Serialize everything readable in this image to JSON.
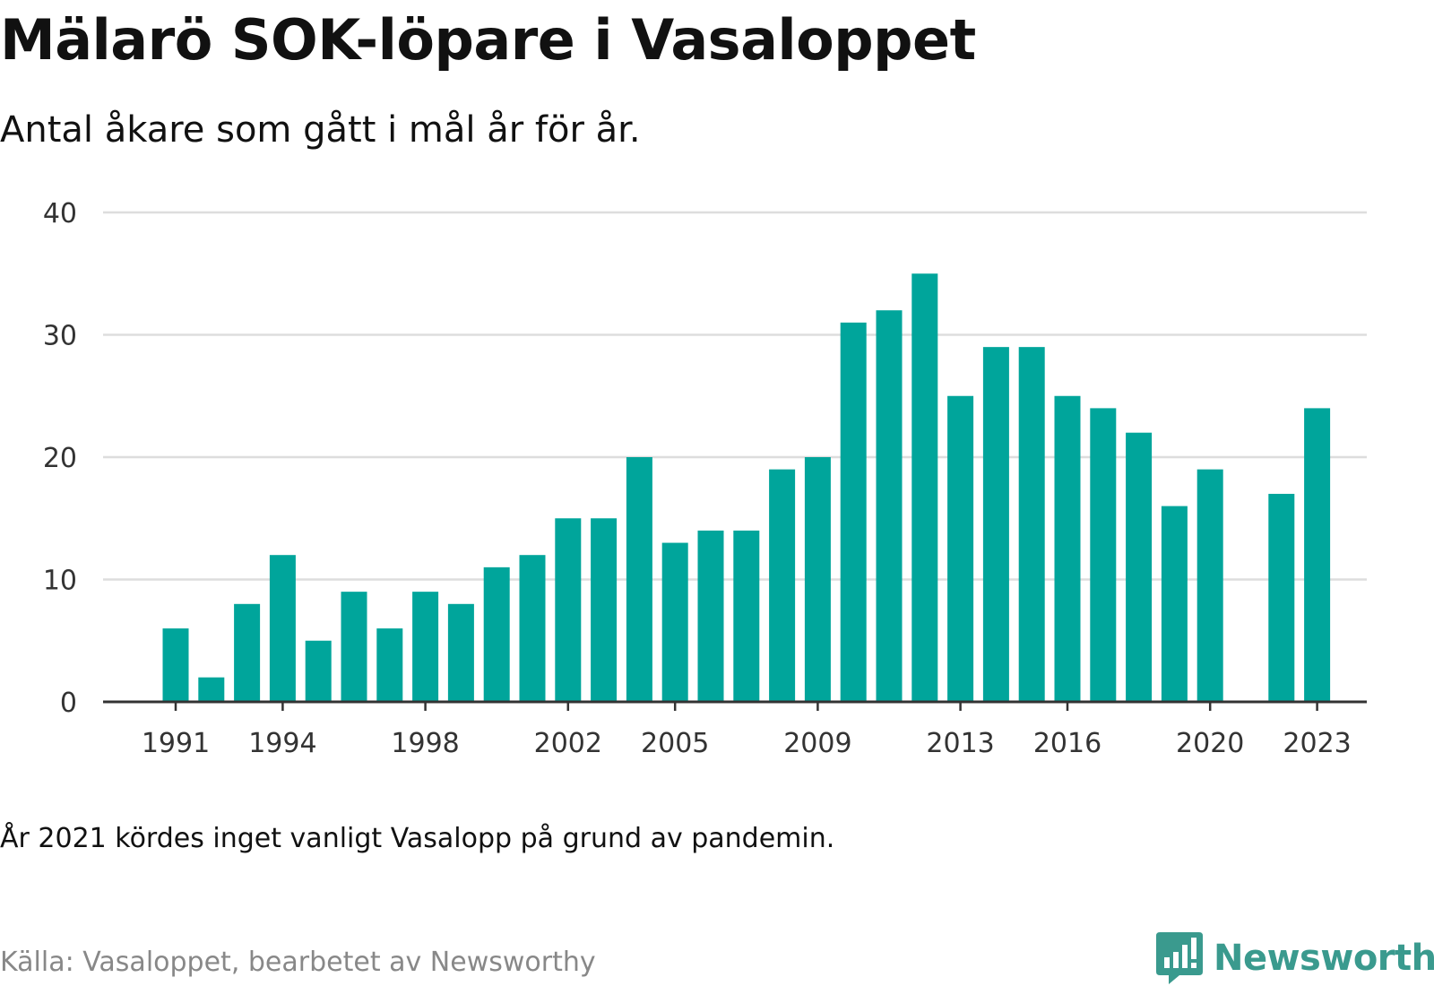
{
  "title": "Mälarö SOK-löpare i Vasaloppet",
  "subtitle": "Antal åkare som gått i mål år för år.",
  "note": "År 2021 kördes inget vanligt Vasalopp på grund av pandemin.",
  "source": "Källa: Vasaloppet, bearbetet av Newsworthy",
  "brand": {
    "name": "Newsworthy",
    "icon": "newsworthy-logo-icon",
    "color": "#3a9a8e"
  },
  "chart_data": {
    "type": "bar",
    "title": "Mälarö SOK-löpare i Vasaloppet",
    "subtitle": "Antal åkare som gått i mål år för år.",
    "bar_color": "#00a59b",
    "grid": true,
    "ylim": [
      0,
      40
    ],
    "y_ticks": [
      0,
      10,
      20,
      30,
      40
    ],
    "x_ticks": [
      1991,
      1994,
      1998,
      2002,
      2005,
      2009,
      2013,
      2016,
      2020,
      2023
    ],
    "categories": [
      1991,
      1992,
      1993,
      1994,
      1995,
      1996,
      1997,
      1998,
      1999,
      2000,
      2001,
      2002,
      2003,
      2004,
      2005,
      2006,
      2007,
      2008,
      2009,
      2010,
      2011,
      2012,
      2013,
      2014,
      2015,
      2016,
      2017,
      2018,
      2019,
      2020,
      2021,
      2022,
      2023
    ],
    "values": [
      6,
      2,
      8,
      12,
      5,
      9,
      6,
      9,
      8,
      11,
      12,
      15,
      15,
      20,
      13,
      14,
      14,
      19,
      20,
      31,
      32,
      35,
      25,
      29,
      29,
      25,
      24,
      22,
      16,
      19,
      null,
      17,
      24
    ]
  }
}
